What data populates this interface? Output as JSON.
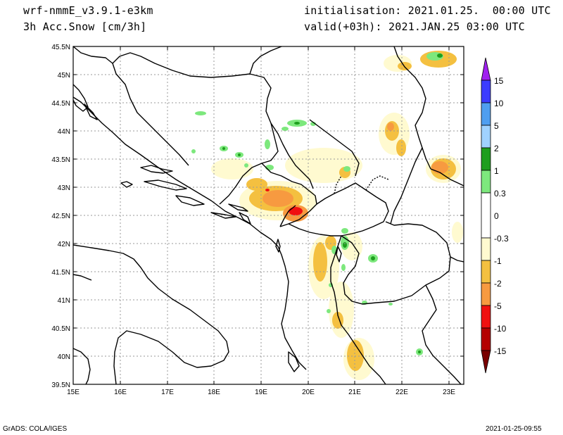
{
  "header": {
    "model": "wrf-nmmE_v3.9.1-e3km",
    "field": "3h Acc.Snow [cm/3h]",
    "initialisation": "initialisation: 2021.01.25.  00:00 UTC",
    "valid": "valid(+03h): 2021.JAN.25 03:00 UTC"
  },
  "map": {
    "lon_labels": [
      "15E",
      "16E",
      "17E",
      "18E",
      "19E",
      "20E",
      "21E",
      "22E",
      "23E"
    ],
    "lat_labels": [
      "45.5N",
      "45N",
      "44.5N",
      "44N",
      "43.5N",
      "43N",
      "42.5N",
      "42N",
      "41.5N",
      "41N",
      "40.5N",
      "40N",
      "39.5N"
    ]
  },
  "colorbar": {
    "labels": [
      "15",
      "10",
      "5",
      "2",
      "1",
      "0.3",
      "0",
      "-0.3",
      "-1",
      "-2",
      "-5",
      "-10",
      "-15"
    ],
    "colors": {
      "top_arrow": "#a020f0",
      "15_10": "#3c3cff",
      "10_5": "#4f9ef0",
      "5_2": "#a0d2ff",
      "2_1": "#1e9e1e",
      "1_0.3": "#7de87d",
      "0.3_-0.3": "#ffffff",
      "-0.3_-1": "#fffad0",
      "-1_-2": "#f4c040",
      "-2_-5": "#f79a40",
      "-5_-10": "#f01010",
      "-10_-15": "#b40000",
      "bottom_arrow": "#7a0000"
    }
  },
  "footer": {
    "left": "GrADS: COLA/IGES",
    "right": "2021-01-25-09:55"
  }
}
